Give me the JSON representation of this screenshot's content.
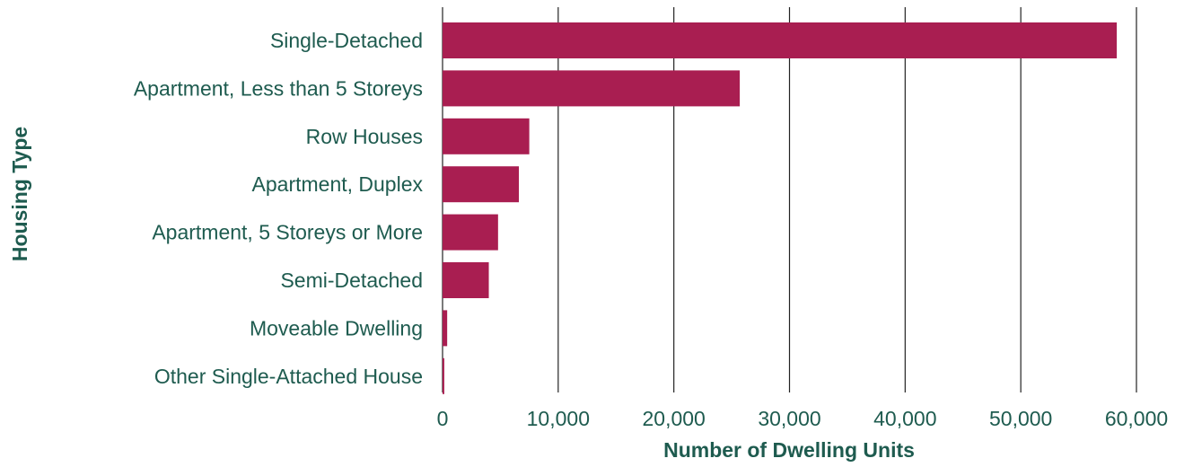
{
  "chart_data": {
    "type": "bar",
    "orientation": "horizontal",
    "title": "",
    "xlabel": "Number of Dwelling Units",
    "ylabel": "Housing Type",
    "categories": [
      "Single-Detached",
      "Apartment, Less than 5 Storeys",
      "Row Houses",
      "Apartment, Duplex",
      "Apartment, 5 Storeys or More",
      "Semi-Detached",
      "Moveable Dwelling",
      "Other Single-Attached House"
    ],
    "values": [
      58300,
      25700,
      7500,
      6600,
      4800,
      4000,
      400,
      150
    ],
    "xlim": [
      0,
      60000
    ],
    "xticks": [
      0,
      10000,
      20000,
      30000,
      40000,
      50000,
      60000
    ],
    "xtick_labels": [
      "0",
      "10,000",
      "20,000",
      "30,000",
      "40,000",
      "50,000",
      "60,000"
    ],
    "grid": "vertical",
    "legend": "none",
    "colors": {
      "bar": "#A91E51",
      "text": "#1E5B4F",
      "grid": "#222222"
    }
  }
}
